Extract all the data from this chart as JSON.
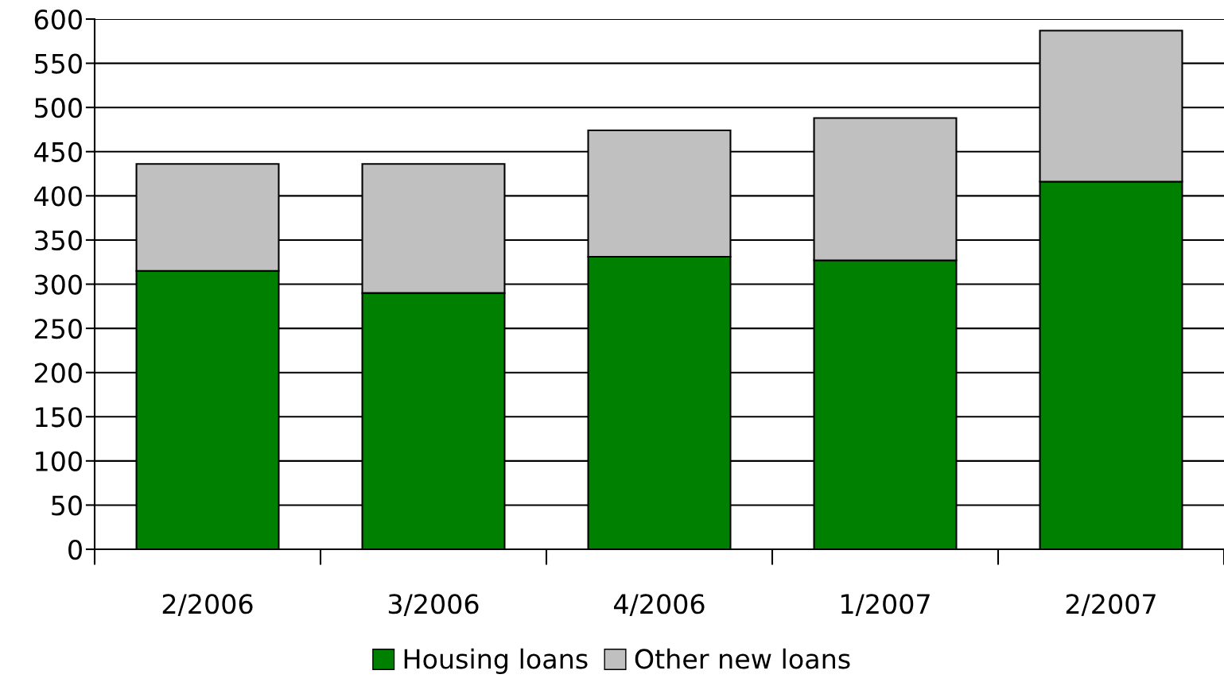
{
  "chart_data": {
    "type": "bar",
    "stacked": true,
    "categories": [
      "2/2006",
      "3/2006",
      "4/2006",
      "1/2007",
      "2/2007"
    ],
    "series": [
      {
        "name": "Housing loans",
        "color": "#008000",
        "values": [
          315,
          290,
          331,
          327,
          416
        ]
      },
      {
        "name": "Other new loans",
        "color": "#c0c0c0",
        "values": [
          121,
          146,
          143,
          161,
          171
        ]
      }
    ],
    "ylim": [
      0,
      600
    ],
    "yticks": [
      0,
      50,
      100,
      150,
      200,
      250,
      300,
      350,
      400,
      450,
      500,
      550,
      600
    ],
    "grid": "y",
    "legend": "bottom"
  }
}
